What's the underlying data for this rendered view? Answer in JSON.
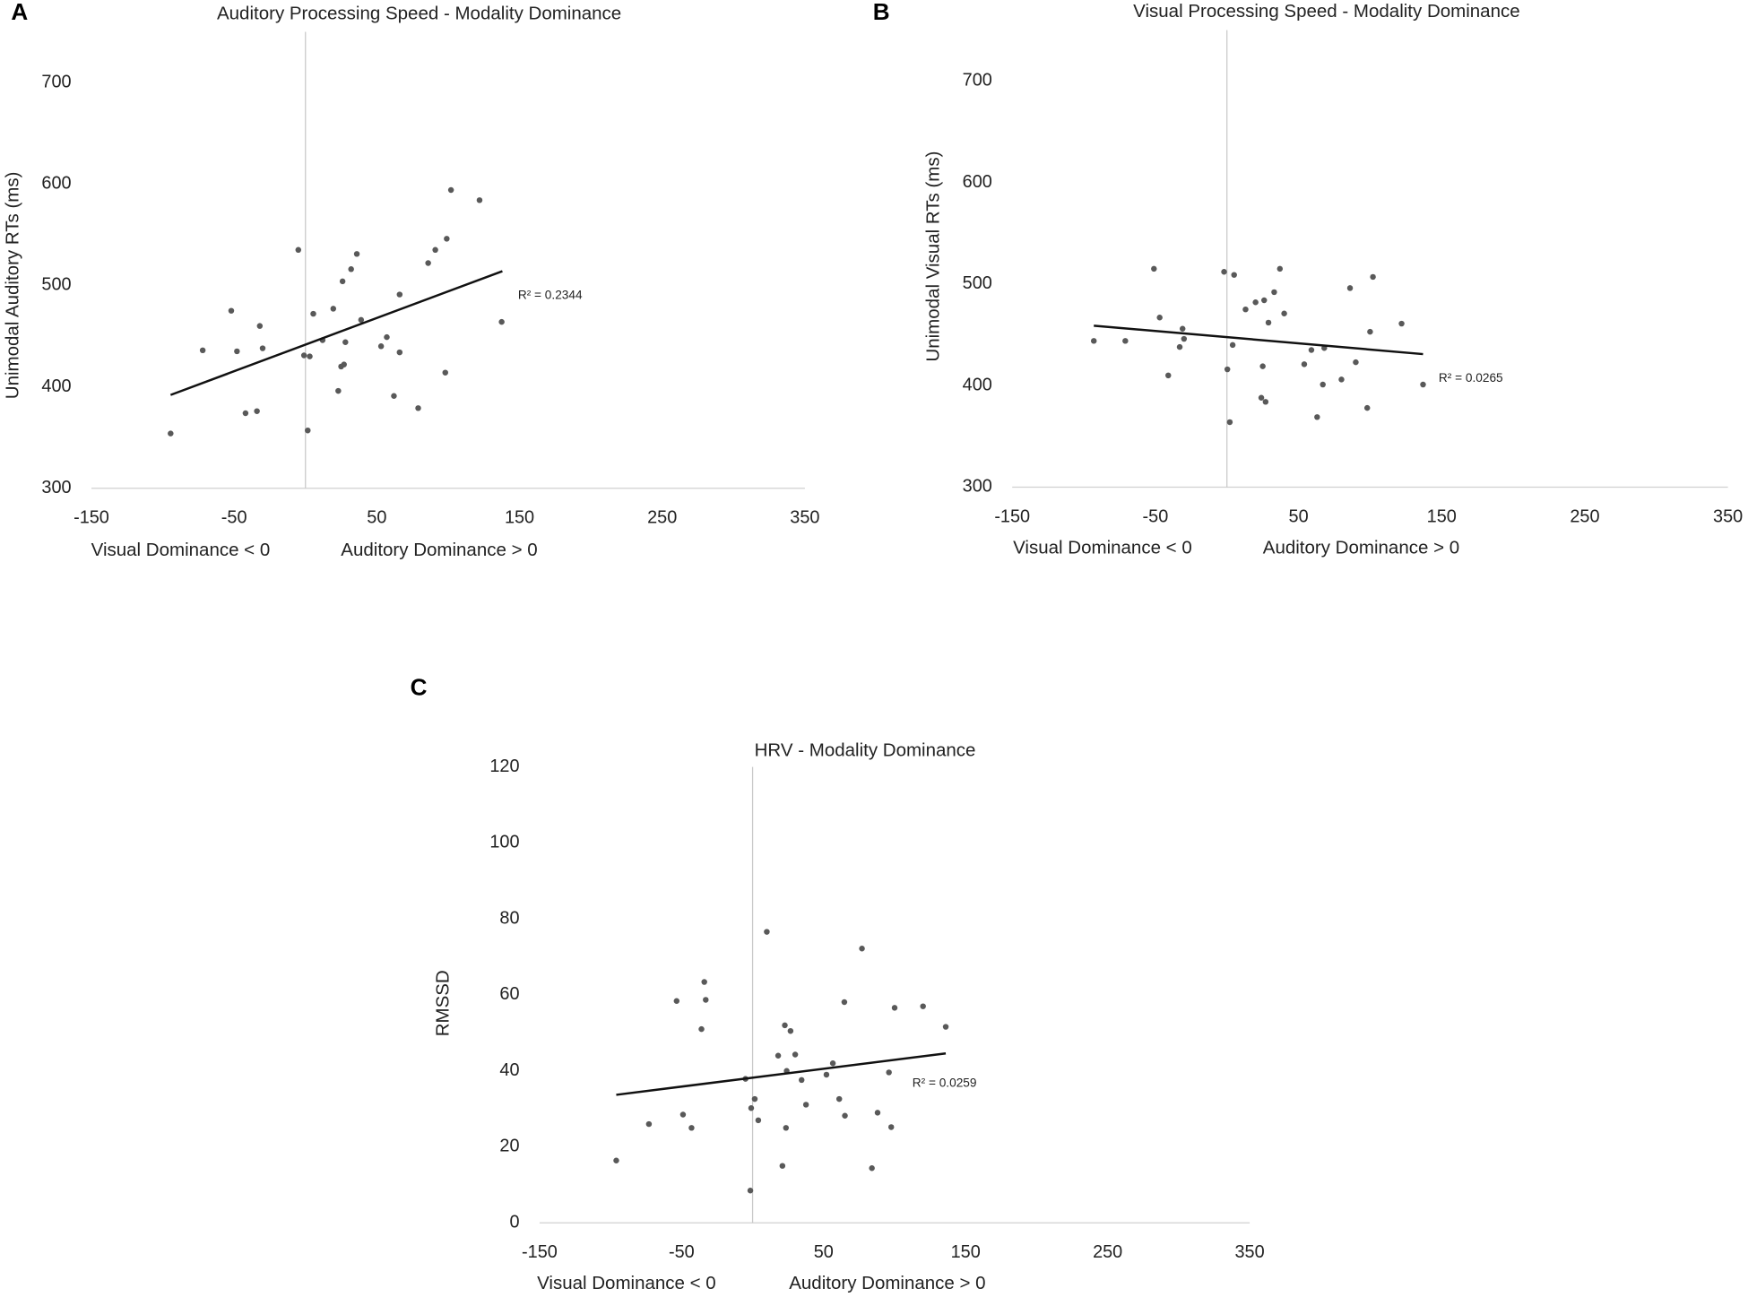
{
  "chart_data": [
    {
      "type": "scatter",
      "panel": "A",
      "title": "Auditory Processing Speed - Modality Dominance",
      "ylabel": "Unimodal Auditory RTs (ms)",
      "xlabels": [
        "Visual Dominance < 0",
        "Auditory Dominance > 0"
      ],
      "xlim": [
        -150,
        350
      ],
      "xticks": [
        -150,
        -50,
        50,
        150,
        250,
        350
      ],
      "ylim": [
        300,
        750
      ],
      "yticks": [
        300,
        400,
        500,
        600,
        700
      ],
      "color": "#595959",
      "x": [
        -94.5,
        -72,
        -52,
        -48,
        -42,
        -34,
        -32,
        -30,
        -5,
        -1,
        1.6,
        3,
        5.5,
        12,
        19.5,
        23,
        25,
        26,
        27,
        28,
        32,
        36,
        39,
        66,
        66,
        57,
        53,
        62,
        79,
        86,
        91,
        98,
        99,
        102,
        122,
        137.5
      ],
      "y": [
        354,
        436,
        475,
        435,
        374,
        376,
        460,
        438,
        535,
        431,
        357,
        430,
        472,
        446,
        477,
        396,
        420,
        504,
        422,
        444,
        516,
        531,
        466,
        491,
        434,
        449,
        440,
        391,
        379,
        522,
        535,
        414,
        546,
        594,
        584,
        464
      ],
      "trendline": {
        "x": [
          -94.5,
          138
        ],
        "y": [
          392,
          514
        ]
      },
      "annotation": "R² = 0.2344"
    },
    {
      "type": "scatter",
      "panel": "B",
      "title": "Visual Processing Speed - Modality Dominance",
      "ylabel": "Unimodal Visual RTs (ms)",
      "xlabels": [
        "Visual Dominance < 0",
        "Auditory Dominance > 0"
      ],
      "xlim": [
        -150,
        350
      ],
      "xticks": [
        -150,
        -50,
        50,
        150,
        250,
        350
      ],
      "ylim": [
        300,
        750
      ],
      "yticks": [
        300,
        400,
        500,
        600,
        700
      ],
      "color": "#595959",
      "x": [
        -93,
        -71,
        -51,
        -47,
        -41,
        -33,
        -31,
        -30,
        -2,
        0.3,
        2,
        4,
        5,
        13,
        20,
        26,
        25,
        24,
        27,
        29,
        33,
        37,
        40,
        54,
        59,
        63,
        67,
        68,
        80,
        86,
        90,
        98,
        100,
        102,
        122,
        137
      ],
      "y": [
        444,
        444,
        515,
        467,
        410,
        438,
        456,
        446,
        512,
        416,
        364,
        440,
        509,
        475,
        482,
        484,
        419,
        388,
        384,
        462,
        492,
        515,
        471,
        421,
        435,
        369,
        401,
        437,
        406,
        496,
        423,
        378,
        453,
        507,
        461,
        401
      ],
      "trendline": {
        "x": [
          -93,
          137
        ],
        "y": [
          459,
          431
        ]
      },
      "annotation": "R² = 0.0265"
    },
    {
      "type": "scatter",
      "panel": "C",
      "title": "HRV - Modality Dominance",
      "ylabel": "RMSSD",
      "xlabels": [
        "Visual Dominance < 0",
        "Auditory Dominance > 0"
      ],
      "xlim": [
        -150,
        350
      ],
      "xticks": [
        -150,
        -50,
        50,
        150,
        250,
        350
      ],
      "ylim": [
        0,
        120
      ],
      "yticks": [
        0,
        20,
        40,
        60,
        80,
        100,
        120
      ],
      "color": "#595959",
      "x": [
        -96,
        -73,
        -53.5,
        -49,
        -43,
        -36,
        -34,
        -33,
        -5,
        -1.6,
        -1,
        1.5,
        4,
        10,
        18,
        21,
        22.7,
        24,
        23.5,
        26.7,
        30,
        34.5,
        37.6,
        52,
        56.5,
        61,
        64.6,
        65,
        77,
        84,
        88,
        96,
        97.6,
        100,
        120,
        136
      ],
      "y": [
        16.4,
        26,
        58.4,
        28.5,
        25,
        51,
        63.4,
        58.7,
        37.9,
        8.5,
        30.2,
        32.6,
        27,
        76.6,
        44,
        15,
        52,
        40,
        25,
        50.5,
        44.3,
        37.6,
        31.1,
        39,
        42,
        32.6,
        58.1,
        28.2,
        72.2,
        14.4,
        29,
        39.6,
        25.2,
        56.6,
        57,
        51.6
      ],
      "trendline": {
        "x": [
          -96,
          136
        ],
        "y": [
          33.7,
          44.6
        ]
      },
      "annotation": "R² = 0.0259"
    }
  ]
}
